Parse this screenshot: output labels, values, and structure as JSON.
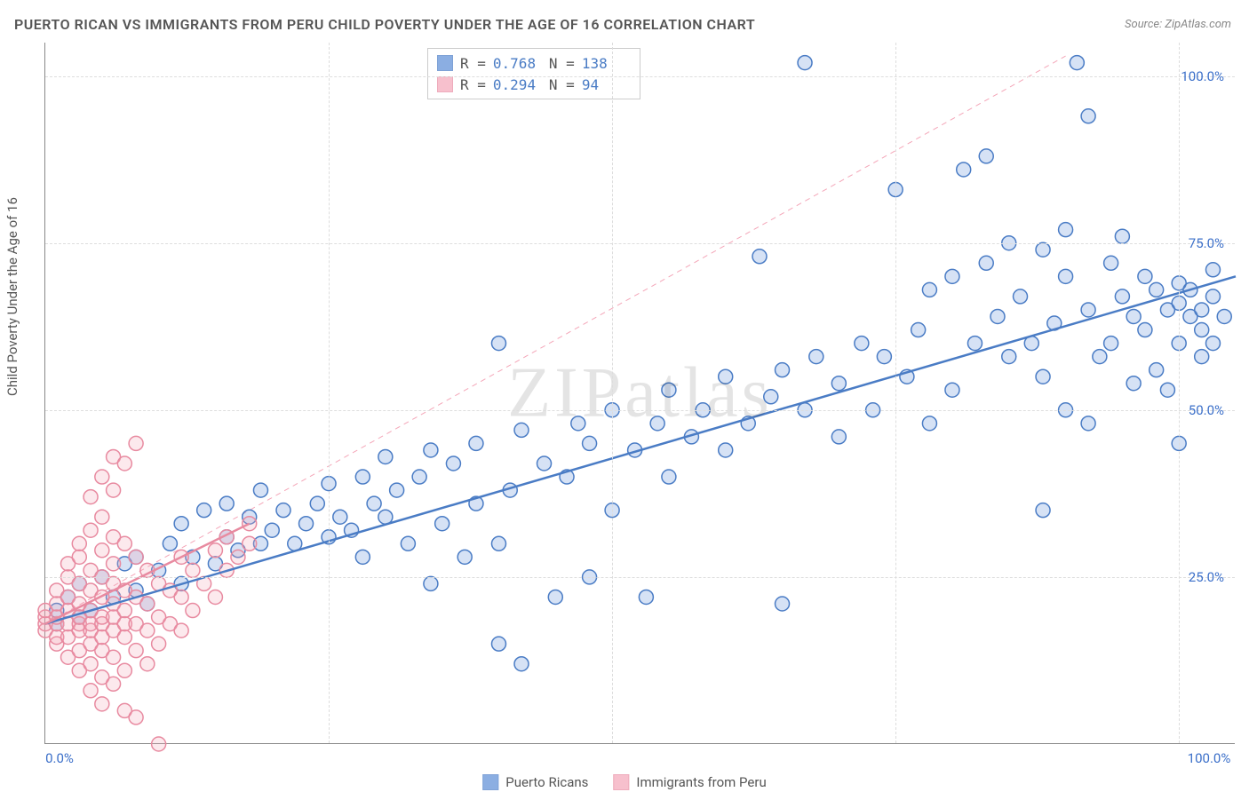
{
  "chart": {
    "type": "scatter",
    "title": "PUERTO RICAN VS IMMIGRANTS FROM PERU CHILD POVERTY UNDER THE AGE OF 16 CORRELATION CHART",
    "source": "Source: ZipAtlas.com",
    "y_axis_label": "Child Poverty Under the Age of 16",
    "watermark": "ZIPatlas",
    "x_min": 0,
    "x_max": 105,
    "y_min": 0,
    "y_max": 105,
    "y_ticks": [
      25,
      50,
      75,
      100
    ],
    "y_tick_labels": [
      "25.0%",
      "50.0%",
      "75.0%",
      "100.0%"
    ],
    "x_tick_labels": {
      "start": "0.0%",
      "end": "100.0%"
    },
    "x_gridlines": [
      25,
      50,
      75,
      100
    ],
    "grid_color": "#dddddd",
    "axis_color": "#888888",
    "background_color": "#ffffff",
    "marker_radius": 8,
    "marker_fill_opacity": 0.25,
    "marker_stroke_width": 1.5,
    "series": [
      {
        "name": "Puerto Ricans",
        "color": "#5b8dd6",
        "stroke": "#4a7cc5",
        "r": 0.768,
        "n": 138,
        "trend": {
          "x1": 0,
          "y1": 18,
          "x2": 105,
          "y2": 70,
          "width": 2.5,
          "dash": ""
        },
        "ref_line": {
          "x1": 0,
          "y1": 18,
          "x2": 90,
          "y2": 103,
          "color": "#f4a6b8",
          "dash": "6,5",
          "width": 1
        },
        "points": [
          [
            1,
            18
          ],
          [
            1,
            20
          ],
          [
            2,
            22
          ],
          [
            3,
            19
          ],
          [
            3,
            24
          ],
          [
            4,
            20
          ],
          [
            5,
            25
          ],
          [
            6,
            22
          ],
          [
            7,
            27
          ],
          [
            8,
            23
          ],
          [
            8,
            28
          ],
          [
            9,
            21
          ],
          [
            10,
            26
          ],
          [
            11,
            30
          ],
          [
            12,
            24
          ],
          [
            12,
            33
          ],
          [
            13,
            28
          ],
          [
            14,
            35
          ],
          [
            15,
            27
          ],
          [
            16,
            31
          ],
          [
            16,
            36
          ],
          [
            17,
            29
          ],
          [
            18,
            34
          ],
          [
            19,
            30
          ],
          [
            19,
            38
          ],
          [
            20,
            32
          ],
          [
            21,
            35
          ],
          [
            22,
            30
          ],
          [
            23,
            33
          ],
          [
            24,
            36
          ],
          [
            25,
            31
          ],
          [
            25,
            39
          ],
          [
            26,
            34
          ],
          [
            27,
            32
          ],
          [
            28,
            28
          ],
          [
            28,
            40
          ],
          [
            29,
            36
          ],
          [
            30,
            34
          ],
          [
            30,
            43
          ],
          [
            31,
            38
          ],
          [
            32,
            30
          ],
          [
            33,
            40
          ],
          [
            34,
            24
          ],
          [
            34,
            44
          ],
          [
            35,
            33
          ],
          [
            36,
            42
          ],
          [
            37,
            28
          ],
          [
            38,
            36
          ],
          [
            38,
            45
          ],
          [
            40,
            15
          ],
          [
            40,
            30
          ],
          [
            40,
            60
          ],
          [
            41,
            38
          ],
          [
            42,
            12
          ],
          [
            42,
            47
          ],
          [
            44,
            42
          ],
          [
            45,
            22
          ],
          [
            46,
            40
          ],
          [
            47,
            48
          ],
          [
            48,
            25
          ],
          [
            48,
            45
          ],
          [
            50,
            35
          ],
          [
            50,
            50
          ],
          [
            52,
            44
          ],
          [
            53,
            22
          ],
          [
            54,
            48
          ],
          [
            55,
            40
          ],
          [
            55,
            53
          ],
          [
            57,
            46
          ],
          [
            58,
            50
          ],
          [
            60,
            44
          ],
          [
            60,
            55
          ],
          [
            62,
            48
          ],
          [
            63,
            73
          ],
          [
            64,
            52
          ],
          [
            65,
            21
          ],
          [
            65,
            56
          ],
          [
            67,
            50
          ],
          [
            67,
            102
          ],
          [
            68,
            58
          ],
          [
            70,
            46
          ],
          [
            70,
            54
          ],
          [
            72,
            60
          ],
          [
            73,
            50
          ],
          [
            74,
            58
          ],
          [
            75,
            83
          ],
          [
            76,
            55
          ],
          [
            77,
            62
          ],
          [
            78,
            48
          ],
          [
            78,
            68
          ],
          [
            80,
            53
          ],
          [
            80,
            70
          ],
          [
            81,
            86
          ],
          [
            82,
            60
          ],
          [
            83,
            72
          ],
          [
            83,
            88
          ],
          [
            84,
            64
          ],
          [
            85,
            58
          ],
          [
            85,
            75
          ],
          [
            86,
            67
          ],
          [
            87,
            60
          ],
          [
            88,
            35
          ],
          [
            88,
            55
          ],
          [
            88,
            74
          ],
          [
            89,
            63
          ],
          [
            90,
            50
          ],
          [
            90,
            70
          ],
          [
            90,
            77
          ],
          [
            91,
            102
          ],
          [
            92,
            48
          ],
          [
            92,
            65
          ],
          [
            92,
            94
          ],
          [
            93,
            58
          ],
          [
            94,
            60
          ],
          [
            94,
            72
          ],
          [
            95,
            67
          ],
          [
            95,
            76
          ],
          [
            96,
            54
          ],
          [
            96,
            64
          ],
          [
            97,
            62
          ],
          [
            97,
            70
          ],
          [
            98,
            56
          ],
          [
            98,
            68
          ],
          [
            99,
            53
          ],
          [
            99,
            65
          ],
          [
            100,
            45
          ],
          [
            100,
            60
          ],
          [
            100,
            66
          ],
          [
            100,
            69
          ],
          [
            101,
            64
          ],
          [
            101,
            68
          ],
          [
            102,
            58
          ],
          [
            102,
            62
          ],
          [
            102,
            65
          ],
          [
            103,
            60
          ],
          [
            103,
            67
          ],
          [
            103,
            71
          ],
          [
            104,
            64
          ]
        ]
      },
      {
        "name": "Immigrants from Peru",
        "color": "#f4a6b8",
        "stroke": "#e88aa0",
        "r": 0.294,
        "n": 94,
        "trend": {
          "x1": 0,
          "y1": 18,
          "x2": 18,
          "y2": 33,
          "width": 2.5,
          "dash": ""
        },
        "points": [
          [
            0,
            17
          ],
          [
            0,
            18
          ],
          [
            0,
            19
          ],
          [
            0,
            20
          ],
          [
            1,
            15
          ],
          [
            1,
            16
          ],
          [
            1,
            18
          ],
          [
            1,
            19
          ],
          [
            1,
            21
          ],
          [
            1,
            23
          ],
          [
            2,
            13
          ],
          [
            2,
            16
          ],
          [
            2,
            18
          ],
          [
            2,
            20
          ],
          [
            2,
            22
          ],
          [
            2,
            25
          ],
          [
            2,
            27
          ],
          [
            3,
            11
          ],
          [
            3,
            14
          ],
          [
            3,
            17
          ],
          [
            3,
            18
          ],
          [
            3,
            19
          ],
          [
            3,
            21
          ],
          [
            3,
            24
          ],
          [
            3,
            28
          ],
          [
            3,
            30
          ],
          [
            4,
            8
          ],
          [
            4,
            12
          ],
          [
            4,
            15
          ],
          [
            4,
            17
          ],
          [
            4,
            18
          ],
          [
            4,
            20
          ],
          [
            4,
            23
          ],
          [
            4,
            26
          ],
          [
            4,
            32
          ],
          [
            4,
            37
          ],
          [
            5,
            6
          ],
          [
            5,
            10
          ],
          [
            5,
            14
          ],
          [
            5,
            16
          ],
          [
            5,
            18
          ],
          [
            5,
            19
          ],
          [
            5,
            22
          ],
          [
            5,
            25
          ],
          [
            5,
            29
          ],
          [
            5,
            34
          ],
          [
            5,
            40
          ],
          [
            6,
            9
          ],
          [
            6,
            13
          ],
          [
            6,
            17
          ],
          [
            6,
            19
          ],
          [
            6,
            21
          ],
          [
            6,
            24
          ],
          [
            6,
            27
          ],
          [
            6,
            31
          ],
          [
            6,
            38
          ],
          [
            6,
            43
          ],
          [
            7,
            5
          ],
          [
            7,
            11
          ],
          [
            7,
            16
          ],
          [
            7,
            18
          ],
          [
            7,
            20
          ],
          [
            7,
            23
          ],
          [
            7,
            30
          ],
          [
            7,
            42
          ],
          [
            8,
            4
          ],
          [
            8,
            14
          ],
          [
            8,
            18
          ],
          [
            8,
            22
          ],
          [
            8,
            28
          ],
          [
            8,
            45
          ],
          [
            9,
            12
          ],
          [
            9,
            17
          ],
          [
            9,
            21
          ],
          [
            9,
            26
          ],
          [
            10,
            0
          ],
          [
            10,
            15
          ],
          [
            10,
            19
          ],
          [
            10,
            24
          ],
          [
            11,
            18
          ],
          [
            11,
            23
          ],
          [
            12,
            17
          ],
          [
            12,
            22
          ],
          [
            12,
            28
          ],
          [
            13,
            20
          ],
          [
            13,
            26
          ],
          [
            14,
            24
          ],
          [
            15,
            22
          ],
          [
            15,
            29
          ],
          [
            16,
            26
          ],
          [
            16,
            31
          ],
          [
            17,
            28
          ],
          [
            18,
            30
          ],
          [
            18,
            33
          ]
        ]
      }
    ],
    "legend": {
      "items": [
        "Puerto Ricans",
        "Immigrants from Peru"
      ]
    },
    "stats_labels": {
      "r": "R =",
      "n": "N ="
    }
  }
}
